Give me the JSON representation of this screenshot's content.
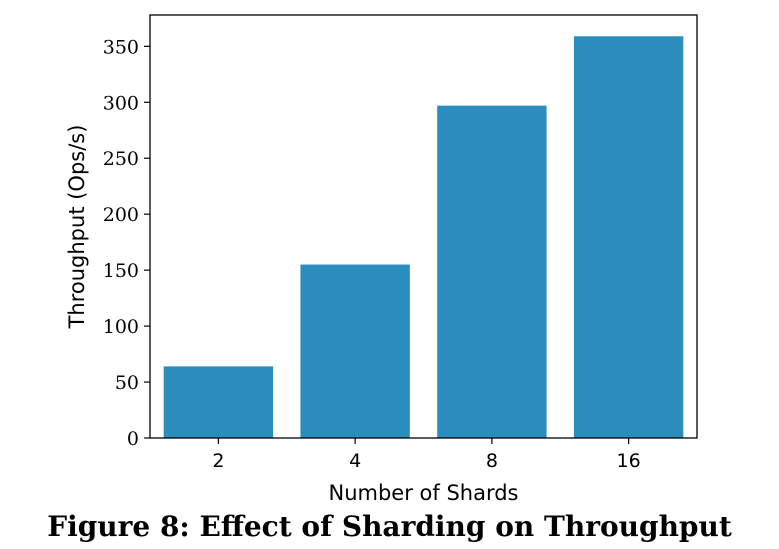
{
  "chart_data": {
    "type": "bar",
    "categories": [
      "2",
      "4",
      "8",
      "16"
    ],
    "values": [
      64,
      155,
      297,
      359
    ],
    "xlabel": "Number of Shards",
    "ylabel": "Throughput (Ops/s)",
    "ylim": [
      0,
      378
    ],
    "yticks": [
      "0",
      "50",
      "100",
      "150",
      "200",
      "250",
      "300",
      "350"
    ],
    "ytick_values": [
      0,
      50,
      100,
      150,
      200,
      250,
      300,
      350
    ],
    "bar_color": "#2b8cbe",
    "grid": false,
    "legend": "none"
  },
  "caption": "Figure 8: Effect of Sharding on Throughput"
}
